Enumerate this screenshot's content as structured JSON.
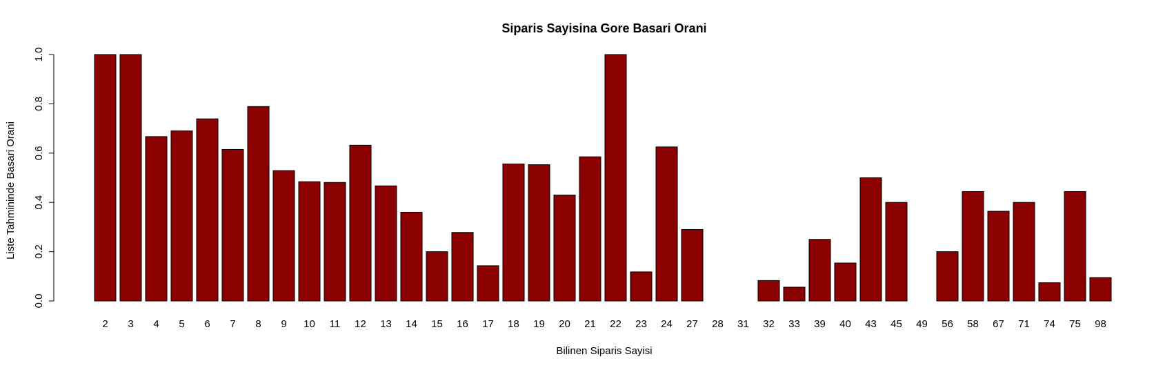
{
  "chart_data": {
    "type": "bar",
    "title": "Siparis Sayisina Gore Basari Orani",
    "xlabel": "Bilinen Siparis Sayisi",
    "ylabel": "Liste Tahmininde Basari Orani",
    "ylim": [
      0,
      1
    ],
    "yticks": [
      "0.0",
      "0.2",
      "0.4",
      "0.6",
      "0.8",
      "1.0"
    ],
    "bar_color": "#8b0000",
    "categories": [
      "2",
      "3",
      "4",
      "5",
      "6",
      "7",
      "8",
      "9",
      "10",
      "11",
      "12",
      "13",
      "14",
      "15",
      "16",
      "17",
      "18",
      "19",
      "20",
      "21",
      "22",
      "23",
      "24",
      "27",
      "28",
      "31",
      "32",
      "33",
      "39",
      "40",
      "43",
      "45",
      "49",
      "56",
      "58",
      "67",
      "71",
      "74",
      "75",
      "98"
    ],
    "values": [
      1.0,
      1.0,
      0.667,
      0.69,
      0.739,
      0.615,
      0.789,
      0.529,
      0.484,
      0.481,
      0.632,
      0.467,
      0.36,
      0.2,
      0.278,
      0.143,
      0.556,
      0.553,
      0.43,
      0.585,
      1.0,
      0.118,
      0.625,
      0.29,
      0.0,
      0.0,
      0.083,
      0.056,
      0.25,
      0.154,
      0.5,
      0.4,
      0.0,
      0.2,
      0.444,
      0.364,
      0.4,
      0.074,
      0.444,
      0.095
    ],
    "grid": false,
    "legend": "none"
  }
}
